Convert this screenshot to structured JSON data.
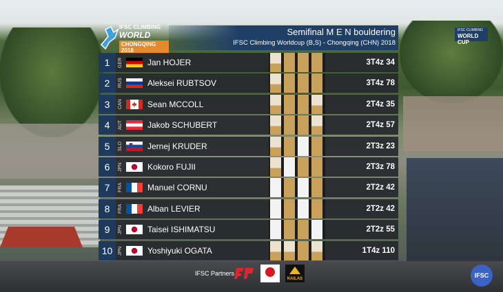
{
  "logo": {
    "line1": "IFSC CLIMBING",
    "line2": "WORLD CUP",
    "line3": "CHONGQING 2018"
  },
  "header": {
    "title": "Semifinal M E N bouldering",
    "subtitle": "IFSC Climbing Worldcup (B,S) - Chongqing (CHN) 2018"
  },
  "corner_logo": {
    "line1": "IFSC CLIMBING",
    "line2": "WORLD CUP"
  },
  "rows": [
    {
      "rank": 1,
      "country": "GER",
      "name": "Jan HOJER",
      "boulders": [
        "zone",
        "top",
        "top",
        "top"
      ],
      "score": "3T4z 34"
    },
    {
      "rank": 2,
      "country": "RUS",
      "name": "Aleksei RUBTSOV",
      "boulders": [
        "zone",
        "top",
        "top",
        "top"
      ],
      "score": "3T4z 78"
    },
    {
      "rank": 3,
      "country": "CAN",
      "name": "Sean MCCOLL",
      "boulders": [
        "zone",
        "top",
        "top",
        "zone"
      ],
      "score": "2T4z 35"
    },
    {
      "rank": 4,
      "country": "AUT",
      "name": "Jakob SCHUBERT",
      "boulders": [
        "zone",
        "top",
        "top",
        "zone"
      ],
      "score": "2T4z 57"
    },
    {
      "rank": 5,
      "country": "SLO",
      "name": "Jernej KRUDER",
      "boulders": [
        "zone",
        "top",
        "none",
        "top"
      ],
      "score": "2T3z 23"
    },
    {
      "rank": 6,
      "country": "JPN",
      "name": "Kokoro FUJII",
      "boulders": [
        "zone",
        "none",
        "top",
        "top"
      ],
      "score": "2T3z 78"
    },
    {
      "rank": 7,
      "country": "FRA",
      "name": "Manuel CORNU",
      "boulders": [
        "none",
        "top",
        "none",
        "top"
      ],
      "score": "2T2z 42"
    },
    {
      "rank": 8,
      "country": "FRA",
      "name": "Alban LEVIER",
      "boulders": [
        "none",
        "top",
        "none",
        "top"
      ],
      "score": "2T2z 42"
    },
    {
      "rank": 9,
      "country": "JPN",
      "name": "Taisei ISHIMATSU",
      "boulders": [
        "none",
        "top",
        "top",
        "none"
      ],
      "score": "2T2z 55"
    },
    {
      "rank": 10,
      "country": "JPN",
      "name": "Yoshiyuki OGATA",
      "boulders": [
        "zone",
        "zone",
        "top",
        "zone"
      ],
      "score": "1T4z 110"
    }
  ],
  "footer": {
    "partners": "IFSC Partners",
    "sponsor": "KAILAS",
    "badge": "IFSC"
  }
}
